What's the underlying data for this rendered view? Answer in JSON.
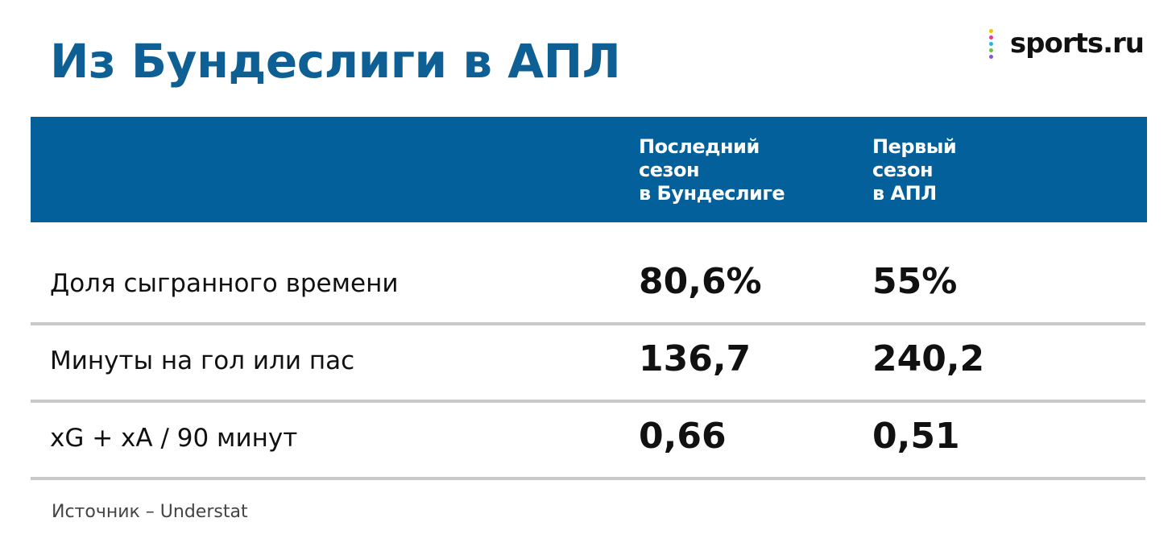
{
  "header": {
    "title": "Из Бундеслиги в АПЛ",
    "logo": "sports.ru"
  },
  "table": {
    "columns": [
      [
        "Последний",
        "сезон",
        "в Бундеслиге"
      ],
      [
        "Первый",
        "сезон",
        "в АПЛ"
      ]
    ],
    "rows": [
      {
        "label": "Доля сыгранного времени",
        "values": [
          "80,6%",
          "55%"
        ]
      },
      {
        "label": "Минуты на гол или пас",
        "values": [
          "136,7",
          "240,2"
        ]
      },
      {
        "label": "xG + xA / 90 минут",
        "values": [
          "0,66",
          "0,51"
        ]
      }
    ]
  },
  "footer": {
    "source": "Источник – Understat"
  }
}
